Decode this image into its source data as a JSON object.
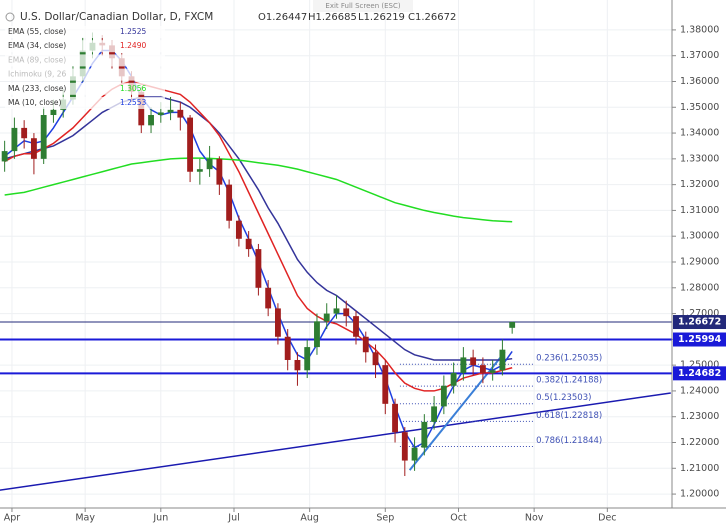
{
  "chart_data": {
    "type": "candlestick",
    "title": "U.S. Dollar/Canadian Dollar, D, FXCM",
    "ohlc_legend": [
      "O1.26447",
      "H1.26685",
      "L1.26219",
      "C1.26672"
    ],
    "fullscreen_hint": "Exit Full Screen (ESC)",
    "up_color": "#2e7d32",
    "down_color": "#a11d1d",
    "grid": true,
    "x": [
      -3,
      1,
      5,
      9,
      13,
      17,
      21,
      25,
      29,
      33,
      37,
      41,
      45,
      49,
      53,
      57,
      61,
      65,
      69,
      73,
      77,
      81,
      85,
      89,
      93,
      97,
      101,
      105,
      109,
      113,
      117,
      121,
      125,
      129,
      133,
      137,
      141,
      145,
      149,
      153,
      157,
      161,
      165,
      169,
      173,
      177,
      181,
      185,
      189,
      193,
      197,
      201,
      205
    ],
    "open": [
      1.329,
      1.333,
      1.342,
      1.338,
      1.33,
      1.347,
      1.349,
      1.353,
      1.362,
      1.372,
      1.375,
      1.374,
      1.369,
      1.362,
      1.356,
      1.343,
      1.347,
      1.348,
      1.349,
      1.346,
      1.325,
      1.326,
      1.33,
      1.32,
      1.306,
      1.299,
      1.295,
      1.28,
      1.272,
      1.261,
      1.252,
      1.248,
      1.257,
      1.267,
      1.27,
      1.272,
      1.269,
      1.261,
      1.255,
      1.25,
      1.235,
      1.224,
      1.213,
      1.218,
      1.228,
      1.234,
      1.242,
      1.247,
      1.253,
      1.25,
      1.247,
      1.248,
      1.26447
    ],
    "high": [
      1.337,
      1.346,
      1.345,
      1.34,
      1.35,
      1.353,
      1.357,
      1.366,
      1.377,
      1.379,
      1.378,
      1.376,
      1.371,
      1.364,
      1.358,
      1.35,
      1.352,
      1.354,
      1.352,
      1.347,
      1.33,
      1.335,
      1.331,
      1.322,
      1.308,
      1.302,
      1.297,
      1.283,
      1.274,
      1.264,
      1.255,
      1.26,
      1.27,
      1.274,
      1.277,
      1.275,
      1.271,
      1.263,
      1.258,
      1.252,
      1.237,
      1.226,
      1.222,
      1.231,
      1.238,
      1.246,
      1.251,
      1.257,
      1.256,
      1.253,
      1.252,
      1.26,
      1.26685
    ],
    "low": [
      1.325,
      1.33,
      1.334,
      1.324,
      1.328,
      1.344,
      1.346,
      1.351,
      1.36,
      1.369,
      1.37,
      1.365,
      1.359,
      1.352,
      1.34,
      1.34,
      1.344,
      1.345,
      1.341,
      1.321,
      1.32,
      1.323,
      1.316,
      1.303,
      1.296,
      1.292,
      1.277,
      1.269,
      1.258,
      1.248,
      1.242,
      1.245,
      1.254,
      1.264,
      1.268,
      1.265,
      1.258,
      1.251,
      1.245,
      1.231,
      1.22,
      1.207,
      1.209,
      1.215,
      1.225,
      1.231,
      1.239,
      1.244,
      1.246,
      1.243,
      1.244,
      1.246,
      1.26219
    ],
    "close": [
      1.333,
      1.342,
      1.338,
      1.33,
      1.347,
      1.349,
      1.353,
      1.362,
      1.372,
      1.375,
      1.374,
      1.369,
      1.362,
      1.356,
      1.343,
      1.347,
      1.348,
      1.349,
      1.346,
      1.325,
      1.326,
      1.33,
      1.32,
      1.306,
      1.299,
      1.295,
      1.28,
      1.272,
      1.261,
      1.252,
      1.248,
      1.257,
      1.267,
      1.27,
      1.272,
      1.269,
      1.261,
      1.255,
      1.25,
      1.235,
      1.224,
      1.213,
      1.218,
      1.228,
      1.234,
      1.242,
      1.247,
      1.253,
      1.25,
      1.247,
      1.248,
      1.256,
      1.26672
    ],
    "series": [
      {
        "name": "EMA (55, close)",
        "color": "#34349a",
        "legend_value": "1.2525",
        "values": [
          1.33,
          1.331,
          1.332,
          1.333,
          1.334,
          1.335,
          1.337,
          1.339,
          1.342,
          1.345,
          1.348,
          1.35,
          1.352,
          1.353,
          1.354,
          1.354,
          1.354,
          1.353,
          1.352,
          1.35,
          1.347,
          1.344,
          1.34,
          1.335,
          1.33,
          1.324,
          1.318,
          1.311,
          1.305,
          1.298,
          1.291,
          1.286,
          1.282,
          1.279,
          1.277,
          1.274,
          1.271,
          1.268,
          1.265,
          1.262,
          1.259,
          1.256,
          1.254,
          1.253,
          1.252,
          1.252,
          1.252,
          1.252,
          1.252,
          1.252,
          1.252,
          1.252,
          1.2525
        ]
      },
      {
        "name": "EMA (34, close)",
        "color": "#e02424",
        "legend_value": "1.2490",
        "values": [
          1.329,
          1.331,
          1.332,
          1.332,
          1.334,
          1.336,
          1.339,
          1.342,
          1.346,
          1.35,
          1.354,
          1.357,
          1.359,
          1.36,
          1.359,
          1.358,
          1.357,
          1.356,
          1.355,
          1.352,
          1.348,
          1.344,
          1.339,
          1.332,
          1.325,
          1.317,
          1.309,
          1.301,
          1.293,
          1.285,
          1.277,
          1.272,
          1.269,
          1.267,
          1.266,
          1.264,
          1.262,
          1.259,
          1.256,
          1.252,
          1.247,
          1.243,
          1.241,
          1.24,
          1.24,
          1.241,
          1.243,
          1.245,
          1.246,
          1.247,
          1.247,
          1.248,
          1.249
        ]
      },
      {
        "name": "MA (233, close)",
        "color": "#22dd22",
        "legend_value": "1.3056",
        "values": [
          1.316,
          1.3165,
          1.317,
          1.318,
          1.319,
          1.32,
          1.321,
          1.322,
          1.323,
          1.324,
          1.325,
          1.326,
          1.327,
          1.328,
          1.3285,
          1.329,
          1.3295,
          1.33,
          1.3302,
          1.3303,
          1.3303,
          1.3302,
          1.33,
          1.3298,
          1.3295,
          1.329,
          1.3285,
          1.328,
          1.3275,
          1.3268,
          1.326,
          1.325,
          1.324,
          1.323,
          1.322,
          1.3205,
          1.319,
          1.3175,
          1.316,
          1.3145,
          1.313,
          1.312,
          1.311,
          1.31,
          1.3092,
          1.3085,
          1.3078,
          1.3072,
          1.3068,
          1.3064,
          1.306,
          1.3058,
          1.3056
        ]
      },
      {
        "name": "MA (10, close)",
        "color": "#1f3fe0",
        "legend_value": "1.2553",
        "values": [
          1.331,
          1.334,
          1.337,
          1.336,
          1.337,
          1.342,
          1.348,
          1.354,
          1.36,
          1.367,
          1.372,
          1.372,
          1.368,
          1.362,
          1.354,
          1.349,
          1.347,
          1.348,
          1.348,
          1.342,
          1.333,
          1.328,
          1.325,
          1.317,
          1.307,
          1.299,
          1.29,
          1.28,
          1.27,
          1.261,
          1.254,
          1.252,
          1.258,
          1.265,
          1.27,
          1.27,
          1.266,
          1.26,
          1.253,
          1.245,
          1.234,
          1.224,
          1.218,
          1.22,
          1.227,
          1.235,
          1.242,
          1.248,
          1.25,
          1.249,
          1.248,
          1.25,
          1.2553
        ]
      }
    ],
    "hidden_indicators": [
      "EMA (89, close)",
      "Ichimoku (9, 26"
    ],
    "price_lines": [
      {
        "value": 1.26672,
        "color": "#22287a"
      },
      {
        "value": 1.25994,
        "color": "#1a1ad8"
      },
      {
        "value": 1.24682,
        "color": "#1a1ad8"
      }
    ],
    "fib_x": [
      159,
      214
    ],
    "fib_color": "#3f51b5",
    "fib_levels": [
      {
        "value": 1.25035,
        "label": "0.236(1.25035)"
      },
      {
        "value": 1.24188,
        "label": "0.382(1.24188)"
      },
      {
        "value": 1.23503,
        "label": "0.5(1.23503)"
      },
      {
        "value": 1.22818,
        "label": "0.618(1.22818)"
      },
      {
        "value": 1.21844,
        "label": "0.786(1.21844)"
      }
    ],
    "trendlines": [
      {
        "color": "#1a1ab0",
        "x": [
          -5,
          270
        ],
        "values": [
          1.2015,
          1.2392
        ]
      },
      {
        "color": "#3a7fd8",
        "x": [
          163,
          202
        ],
        "values": [
          1.2093,
          1.2551
        ]
      }
    ],
    "xlim": [
      -4.9,
      270.5
    ],
    "xticks": [
      {
        "value": 0,
        "label": "Apr"
      },
      {
        "value": 30,
        "label": "May"
      },
      {
        "value": 61,
        "label": "Jun"
      },
      {
        "value": 91,
        "label": "Jul"
      },
      {
        "value": 122,
        "label": "Aug"
      },
      {
        "value": 153,
        "label": "Sep"
      },
      {
        "value": 183,
        "label": "Oct"
      },
      {
        "value": 214,
        "label": "Nov"
      },
      {
        "value": 244,
        "label": "Dec"
      }
    ],
    "ylim": [
      1.1946,
      1.3916
    ],
    "yticks": [
      {
        "value": 1.2,
        "label": "1.20000"
      },
      {
        "value": 1.21,
        "label": "1.21000"
      },
      {
        "value": 1.22,
        "label": "1.22000"
      },
      {
        "value": 1.23,
        "label": "1.23000"
      },
      {
        "value": 1.24,
        "label": "1.24000"
      },
      {
        "value": 1.25,
        "label": "1.25000"
      },
      {
        "value": 1.26,
        "label": "1.26000"
      },
      {
        "value": 1.27,
        "label": "1.27000"
      },
      {
        "value": 1.28,
        "label": "1.28000"
      },
      {
        "value": 1.29,
        "label": "1.29000"
      },
      {
        "value": 1.3,
        "label": "1.30000"
      },
      {
        "value": 1.31,
        "label": "1.31000"
      },
      {
        "value": 1.32,
        "label": "1.32000"
      },
      {
        "value": 1.33,
        "label": "1.33000"
      },
      {
        "value": 1.34,
        "label": "1.34000"
      },
      {
        "value": 1.35,
        "label": "1.35000"
      },
      {
        "value": 1.36,
        "label": "1.36000"
      },
      {
        "value": 1.37,
        "label": "1.37000"
      },
      {
        "value": 1.38,
        "label": "1.38000"
      }
    ]
  }
}
